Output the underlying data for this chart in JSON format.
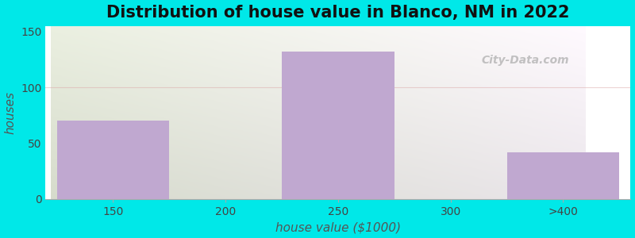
{
  "title": "Distribution of house value in Blanco, NM in 2022",
  "xlabel": "house value ($1000)",
  "ylabel": "houses",
  "bar_labels": [
    "150",
    "200",
    "250",
    "300",
    ">400"
  ],
  "bar_heights": [
    70,
    0,
    132,
    0,
    42
  ],
  "bar_left_edges": [
    0.0,
    1.0,
    1.0,
    2.0,
    3.0
  ],
  "bar_widths": [
    1.0,
    0.0,
    1.0,
    0.0,
    1.2
  ],
  "bar_positions_ticks": [
    0.5,
    1.0,
    1.5,
    2.0,
    3.5
  ],
  "bar_color": "#c0a8d0",
  "ylim": [
    0,
    155
  ],
  "yticks": [
    0,
    50,
    100,
    150
  ],
  "xlim": [
    -0.05,
    4.7
  ],
  "background_color": "#00e8e8",
  "plot_bg_color_topleft": "#e5f5e5",
  "plot_bg_color_topright": "#f0fff0",
  "plot_bg_color_bottomright": "#ffffff",
  "title_fontsize": 15,
  "axis_label_fontsize": 11,
  "tick_fontsize": 10,
  "watermark_text": "City-Data.com",
  "grid_color": "#ddaaaa",
  "grid_alpha": 0.5
}
